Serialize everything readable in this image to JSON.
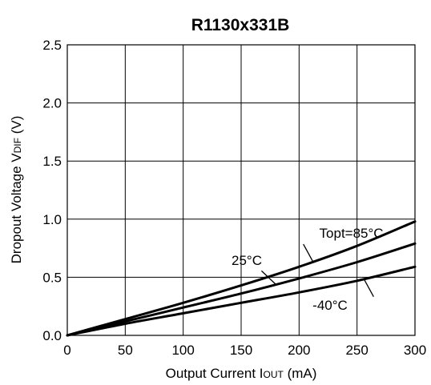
{
  "chart_data": {
    "type": "line",
    "title": "R1130x331B",
    "xlabel": {
      "main": "Output Current I",
      "sub": "OUT",
      "unit": " (mA)"
    },
    "ylabel": {
      "main": "Dropout Voltage V",
      "sub": "DIF",
      "unit": " (V)"
    },
    "xlim": [
      0,
      300
    ],
    "ylim": [
      0,
      2.5
    ],
    "xticks": [
      0,
      50,
      100,
      150,
      200,
      250,
      300
    ],
    "yticks": [
      "0.0",
      "0.5",
      "1.0",
      "1.5",
      "2.0",
      "2.5"
    ],
    "grid": true,
    "x": [
      0,
      50,
      100,
      150,
      200,
      250,
      300
    ],
    "series": [
      {
        "name": "Topt=85°C",
        "values": [
          0,
          0.14,
          0.28,
          0.43,
          0.59,
          0.77,
          0.98
        ]
      },
      {
        "name": "25°C",
        "values": [
          0,
          0.12,
          0.24,
          0.36,
          0.49,
          0.63,
          0.79
        ]
      },
      {
        "name": "-40°C",
        "values": [
          0,
          0.1,
          0.19,
          0.28,
          0.37,
          0.47,
          0.59
        ]
      }
    ],
    "annotations": [
      {
        "text": "Topt=85°C",
        "series": 0,
        "x": 252,
        "leader_x": 212
      },
      {
        "text": "25°C",
        "series": 1,
        "x": 166,
        "leader_x": 180
      },
      {
        "text": "-40°C",
        "series": 2,
        "x": 232,
        "leader_x": 256
      }
    ]
  }
}
